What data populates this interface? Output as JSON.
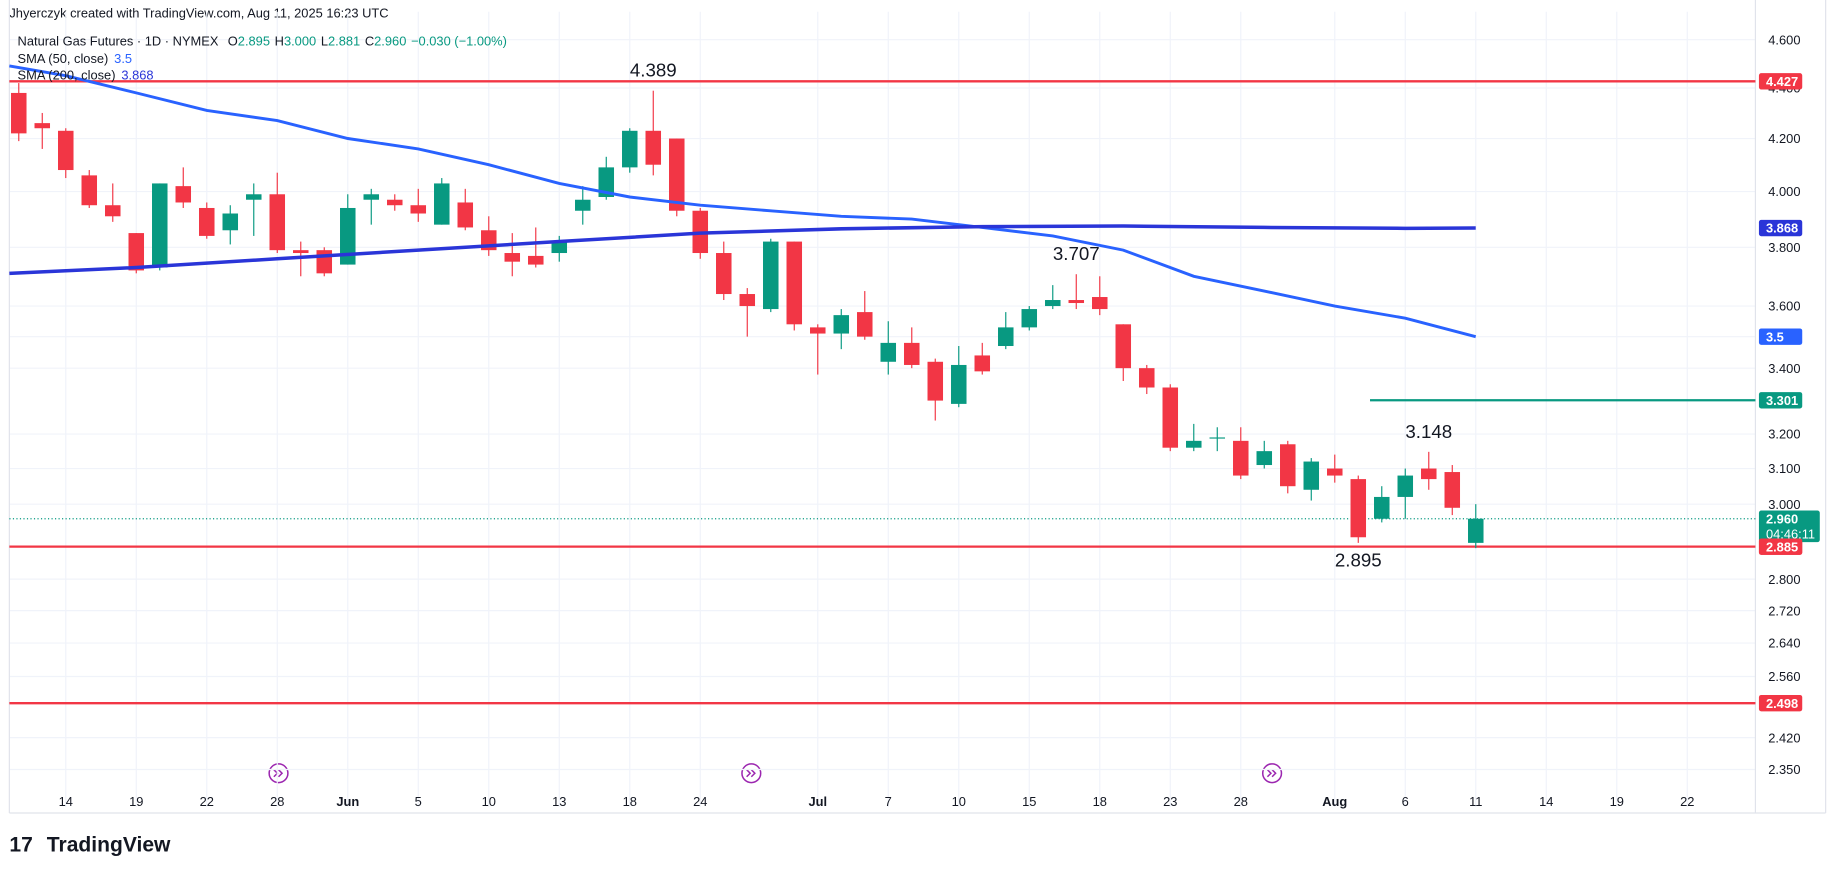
{
  "header": "Jhyerczyk created with TradingView.com, Aug 11, 2025 16:23 UTC",
  "legend": {
    "symbol": "Natural Gas Futures · 1D · NYMEX",
    "fields": [
      {
        "key": "O",
        "value": "2.895"
      },
      {
        "key": "H",
        "value": "3.000"
      },
      {
        "key": "L",
        "value": "2.881"
      },
      {
        "key": "C",
        "value": "2.960"
      }
    ],
    "change": "−0.030 (−1.00%)"
  },
  "logo": "TradingView",
  "chart_data": {
    "type": "candlestick",
    "log_scale": true,
    "grid": true,
    "up_color": "#089981",
    "down_color": "#f23645",
    "xlim": [
      -0.4,
      73.9
    ],
    "ylim": [
      2.27,
      4.72
    ],
    "xticks": [
      {
        "value": 2,
        "label": "14"
      },
      {
        "value": 5,
        "label": "19"
      },
      {
        "value": 8,
        "label": "22"
      },
      {
        "value": 11,
        "label": "28"
      },
      {
        "value": 14,
        "label": "Jun"
      },
      {
        "value": 17,
        "label": "5"
      },
      {
        "value": 20,
        "label": "10"
      },
      {
        "value": 23,
        "label": "13"
      },
      {
        "value": 26,
        "label": "18"
      },
      {
        "value": 29,
        "label": "24"
      },
      {
        "value": 34,
        "label": "Jul"
      },
      {
        "value": 37,
        "label": "7"
      },
      {
        "value": 40,
        "label": "10"
      },
      {
        "value": 43,
        "label": "15"
      },
      {
        "value": 46,
        "label": "18"
      },
      {
        "value": 49,
        "label": "23"
      },
      {
        "value": 52,
        "label": "28"
      },
      {
        "value": 56,
        "label": "Aug"
      },
      {
        "value": 59,
        "label": "6"
      },
      {
        "value": 62,
        "label": "11"
      },
      {
        "value": 65,
        "label": "14"
      },
      {
        "value": 68,
        "label": "19"
      },
      {
        "value": 71,
        "label": "22"
      }
    ],
    "yticks": [
      {
        "value": 4.6,
        "label": "4.600"
      },
      {
        "value": 4.4,
        "label": "4.400"
      },
      {
        "value": 4.2,
        "label": "4.200"
      },
      {
        "value": 4.0,
        "label": "4.000"
      },
      {
        "value": 3.8,
        "label": "3.800"
      },
      {
        "value": 3.6,
        "label": "3.600"
      },
      {
        "value": 3.5,
        "label": "3.500"
      },
      {
        "value": 3.4,
        "label": "3.400"
      },
      {
        "value": 3.2,
        "label": "3.200"
      },
      {
        "value": 3.1,
        "label": "3.100"
      },
      {
        "value": 3.0,
        "label": "3.000"
      },
      {
        "value": 2.8,
        "label": "2.800"
      },
      {
        "value": 2.72,
        "label": "2.720"
      },
      {
        "value": 2.64,
        "label": "2.640"
      },
      {
        "value": 2.56,
        "label": "2.560"
      },
      {
        "value": 2.42,
        "label": "2.420"
      },
      {
        "value": 2.35,
        "label": "2.350"
      }
    ],
    "open": [
      4.38,
      4.26,
      4.23,
      4.06,
      3.95,
      3.85,
      3.73,
      4.02,
      3.94,
      3.86,
      3.97,
      3.99,
      3.79,
      3.79,
      3.74,
      3.97,
      3.97,
      3.95,
      3.88,
      3.96,
      3.86,
      3.78,
      3.77,
      3.78,
      3.93,
      3.98,
      4.09,
      4.23,
      4.2,
      3.93,
      3.78,
      3.64,
      3.59,
      3.82,
      3.53,
      3.51,
      3.58,
      3.42,
      3.48,
      3.42,
      3.29,
      3.44,
      3.47,
      3.53,
      3.6,
      3.62,
      3.63,
      3.54,
      3.4,
      3.34,
      3.16,
      3.19,
      3.18,
      3.11,
      3.17,
      3.04,
      3.1,
      3.07,
      2.96,
      3.02,
      3.1,
      3.09,
      2.895
    ],
    "high": [
      4.42,
      4.3,
      4.24,
      4.08,
      4.03,
      3.85,
      4.03,
      4.09,
      3.96,
      3.95,
      4.03,
      4.07,
      3.82,
      3.8,
      3.99,
      4.01,
      3.99,
      4.01,
      4.05,
      4.01,
      3.91,
      3.85,
      3.87,
      3.84,
      4.02,
      4.13,
      4.24,
      4.389,
      4.2,
      3.94,
      3.82,
      3.66,
      3.83,
      3.82,
      3.54,
      3.59,
      3.65,
      3.55,
      3.53,
      3.43,
      3.47,
      3.48,
      3.58,
      3.6,
      3.67,
      3.707,
      3.7,
      3.54,
      3.41,
      3.35,
      3.23,
      3.22,
      3.22,
      3.18,
      3.18,
      3.13,
      3.14,
      3.08,
      3.05,
      3.1,
      3.148,
      3.11,
      3.0
    ],
    "low": [
      4.19,
      4.16,
      4.05,
      3.94,
      3.89,
      3.71,
      3.72,
      3.94,
      3.83,
      3.81,
      3.84,
      3.78,
      3.7,
      3.7,
      3.74,
      3.88,
      3.93,
      3.89,
      3.88,
      3.86,
      3.77,
      3.7,
      3.73,
      3.75,
      3.88,
      3.97,
      4.07,
      4.06,
      3.91,
      3.76,
      3.62,
      3.5,
      3.58,
      3.52,
      3.38,
      3.46,
      3.49,
      3.38,
      3.4,
      3.24,
      3.28,
      3.38,
      3.46,
      3.52,
      3.59,
      3.59,
      3.57,
      3.36,
      3.32,
      3.15,
      3.15,
      3.15,
      3.07,
      3.1,
      3.03,
      3.01,
      3.06,
      2.895,
      2.95,
      2.96,
      3.04,
      2.97,
      2.881
    ],
    "close": [
      4.22,
      4.24,
      4.08,
      3.95,
      3.91,
      3.72,
      4.03,
      3.96,
      3.84,
      3.92,
      3.99,
      3.79,
      3.78,
      3.71,
      3.94,
      3.99,
      3.95,
      3.92,
      4.03,
      3.87,
      3.79,
      3.75,
      3.74,
      3.82,
      3.97,
      4.09,
      4.23,
      4.1,
      3.93,
      3.78,
      3.64,
      3.6,
      3.82,
      3.54,
      3.51,
      3.57,
      3.5,
      3.48,
      3.41,
      3.3,
      3.41,
      3.39,
      3.53,
      3.59,
      3.62,
      3.61,
      3.59,
      3.4,
      3.34,
      3.16,
      3.18,
      3.19,
      3.08,
      3.15,
      3.05,
      3.12,
      3.08,
      2.91,
      3.02,
      3.08,
      3.07,
      2.99,
      2.96
    ],
    "series": [
      {
        "name": "SMA (50, close)",
        "color": "#2962ff",
        "value_label": "3.5",
        "x": [
          -0.4,
          2,
          5,
          8,
          11,
          14,
          17,
          20,
          23,
          26,
          29,
          32,
          35,
          38,
          41,
          44,
          47,
          50,
          53,
          56,
          59,
          62
        ],
        "values": [
          4.49,
          4.45,
          4.38,
          4.31,
          4.27,
          4.2,
          4.16,
          4.1,
          4.03,
          3.98,
          3.95,
          3.93,
          3.91,
          3.9,
          3.87,
          3.84,
          3.79,
          3.7,
          3.65,
          3.6,
          3.56,
          3.5
        ]
      },
      {
        "name": "SMA (200, close)",
        "color": "#2a35d8",
        "value_label": "3.868",
        "x": [
          -0.4,
          5,
          11,
          17,
          23,
          29,
          35,
          41,
          47,
          53,
          59,
          62
        ],
        "values": [
          3.71,
          3.73,
          3.76,
          3.79,
          3.82,
          3.85,
          3.865,
          3.873,
          3.875,
          3.87,
          3.867,
          3.868
        ]
      }
    ],
    "levels": [
      {
        "value": 4.427,
        "label": "4.427",
        "color": "#f23645"
      },
      {
        "value": 3.301,
        "label": "3.301",
        "color": "#089981",
        "x0": 57.5
      },
      {
        "value": 2.885,
        "label": "2.885",
        "color": "#f23645"
      },
      {
        "value": 2.498,
        "label": "2.498",
        "color": "#f23645"
      }
    ],
    "last_price": {
      "value": 2.96,
      "label": "2.960",
      "countdown": "04:46:11",
      "color": "#089981"
    },
    "annotations": [
      {
        "label": "4.389",
        "x": 27,
        "position": "above"
      },
      {
        "label": "3.707",
        "x": 45,
        "position": "above"
      },
      {
        "label": "3.148",
        "x": 60,
        "position": "above"
      },
      {
        "label": "2.895",
        "x": 57,
        "position": "below"
      }
    ]
  }
}
